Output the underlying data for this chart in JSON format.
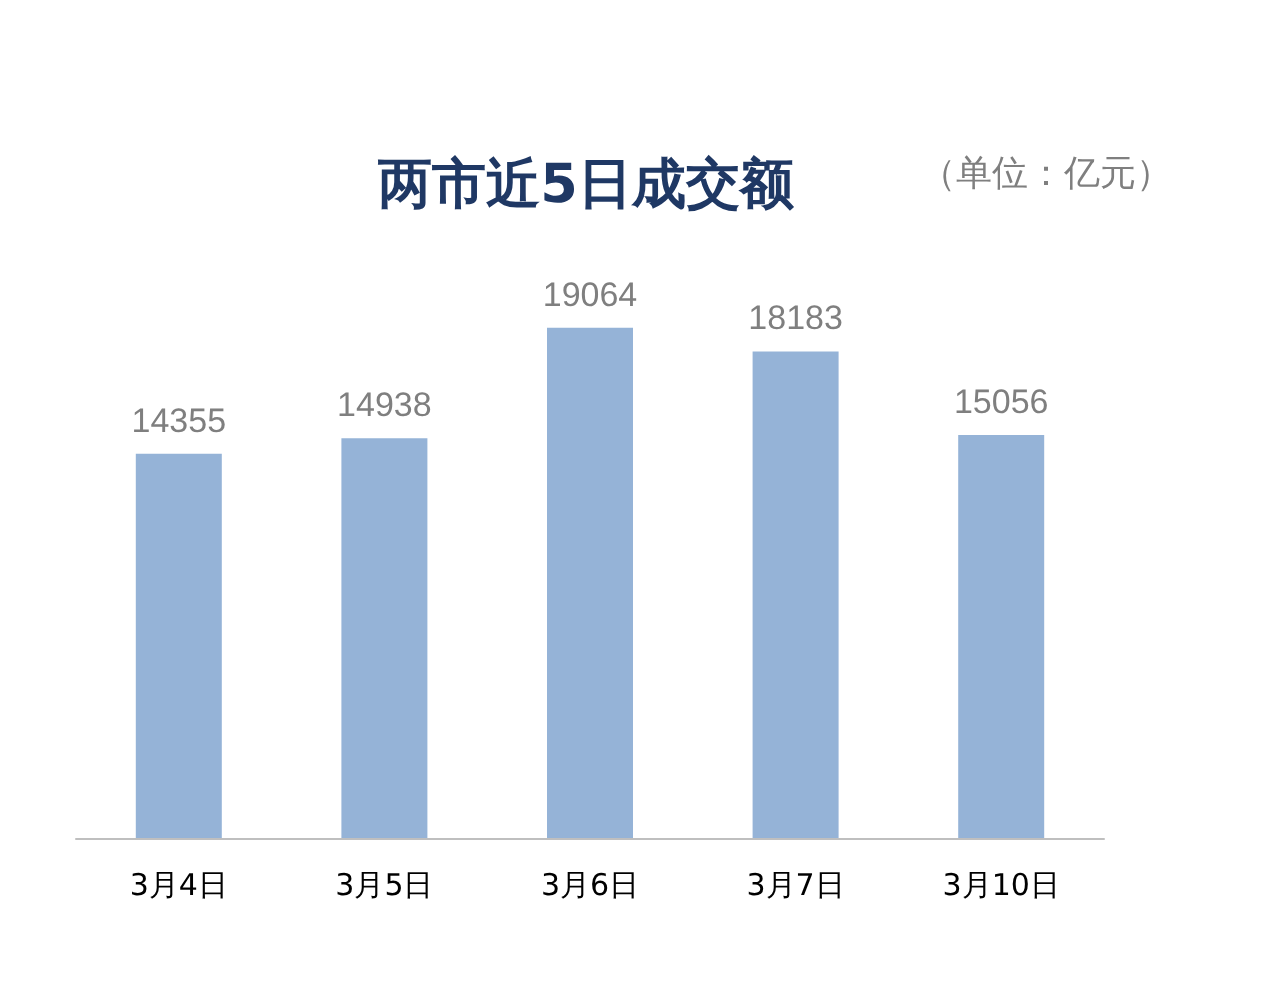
{
  "chart_data": {
    "type": "bar",
    "title": "两市近5日成交额",
    "annotations": [
      "（单位：亿元）"
    ],
    "categories": [
      "3月4日",
      "3月5日",
      "3月6日",
      "3月7日",
      "3月10日"
    ],
    "values": [
      14355,
      14938,
      19064,
      18183,
      15056
    ],
    "color": "#95b3d7",
    "data_labels": true
  }
}
